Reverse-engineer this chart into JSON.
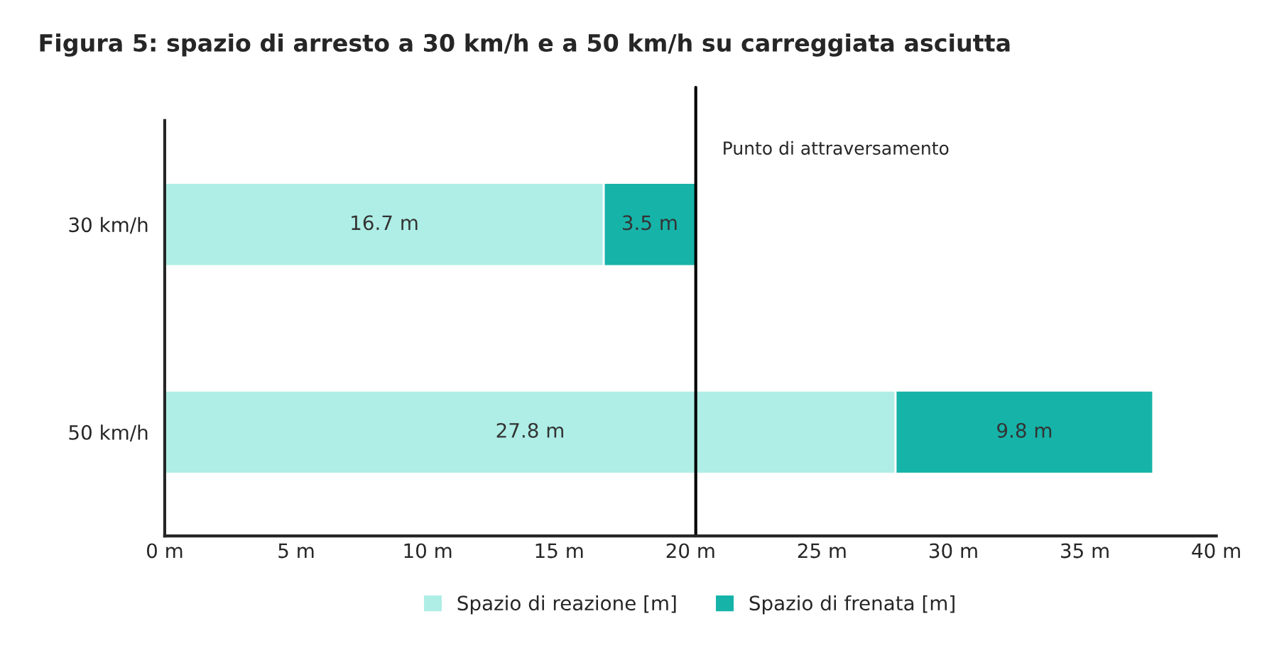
{
  "chart_data": {
    "type": "bar",
    "orientation": "horizontal",
    "stacked": true,
    "title": "Figura 5: spazio di arresto a 30 km/h e a 50 km/h su carreggiata asciutta",
    "categories": [
      "30 km/h",
      "50 km/h"
    ],
    "series": [
      {
        "name": "Spazio di reazione [m]",
        "color": "#aeeee6",
        "values": [
          16.7,
          27.8
        ],
        "value_labels": [
          "16.7 m",
          "27.8 m"
        ]
      },
      {
        "name": "Spazio di frenata [m]",
        "color": "#16b3a9",
        "values": [
          3.5,
          9.8
        ],
        "value_labels": [
          "3.5 m",
          "9.8 m"
        ]
      }
    ],
    "xlim": [
      0,
      40
    ],
    "xticks": [
      {
        "value": 0,
        "label": "0 m"
      },
      {
        "value": 5,
        "label": "5 m"
      },
      {
        "value": 10,
        "label": "10 m"
      },
      {
        "value": 15,
        "label": "15 m"
      },
      {
        "value": 20,
        "label": "20 m"
      },
      {
        "value": 25,
        "label": "25 m"
      },
      {
        "value": 30,
        "label": "30 m"
      },
      {
        "value": 35,
        "label": "35 m"
      },
      {
        "value": 40,
        "label": "40 m"
      }
    ],
    "ref_lines": [
      {
        "axis": "x",
        "value": 20.2,
        "label": "Punto di attraversamento",
        "color": "#000000"
      }
    ],
    "grid": false,
    "legend": "bottom"
  }
}
